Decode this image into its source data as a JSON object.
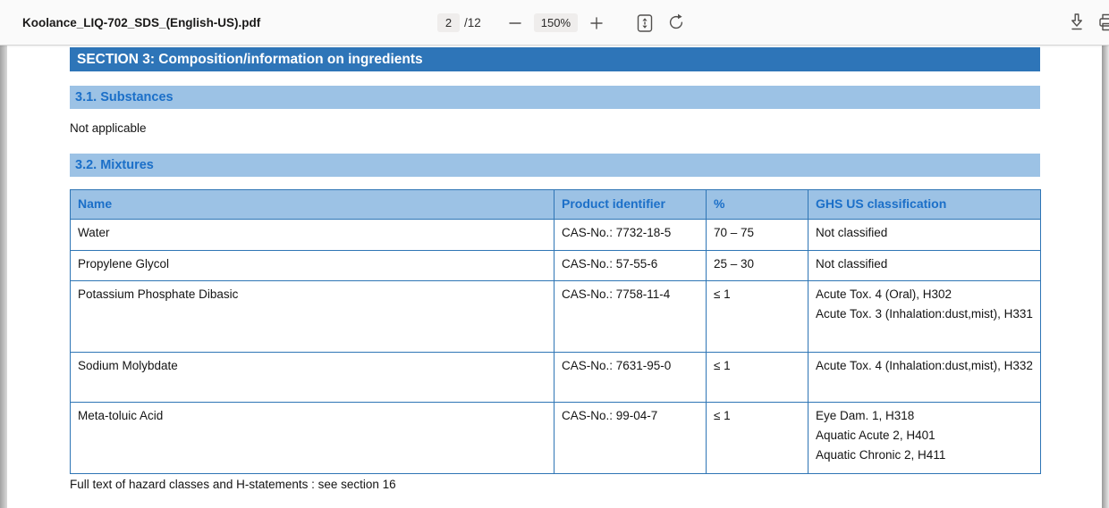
{
  "toolbar": {
    "filename": "Koolance_LIQ-702_SDS_(English-US).pdf",
    "page_current": "2",
    "page_suffix": "/12",
    "zoom_level": "150%",
    "icons": {
      "zoom_out": "minus-icon",
      "zoom_in": "plus-icon",
      "fit": "fit-to-page-icon",
      "rotate": "rotate-icon",
      "download": "download-icon",
      "print": "printer-icon"
    }
  },
  "document": {
    "section_header": "SECTION 3: Composition/information on ingredients",
    "subsection_1": "3.1. Substances",
    "not_applicable": "Not applicable",
    "subsection_2": "3.2. Mixtures",
    "table": {
      "headers": [
        "Name",
        "Product identifier",
        "%",
        "GHS US classification"
      ],
      "rows": [
        {
          "name": "Water",
          "cas": "CAS-No.: 7732-18-5",
          "percent": "70 – 75",
          "ghs": [
            "Not classified"
          ]
        },
        {
          "name": "Propylene Glycol",
          "cas": "CAS-No.: 57-55-6",
          "percent": "25 – 30",
          "ghs": [
            "Not classified"
          ]
        },
        {
          "name": "Potassium Phosphate Dibasic",
          "cas": "CAS-No.: 7758-11-4",
          "percent": "≤ 1",
          "ghs": [
            "Acute Tox. 4 (Oral), H302",
            "Acute Tox. 3 (Inhalation:dust,mist), H331"
          ]
        },
        {
          "name": "Sodium Molybdate",
          "cas": "CAS-No.: 7631-95-0",
          "percent": "≤ 1",
          "ghs": [
            "Acute Tox. 4 (Inhalation:dust,mist), H332"
          ]
        },
        {
          "name": "Meta-toluic Acid",
          "cas": "CAS-No.: 99-04-7",
          "percent": "≤ 1",
          "ghs": [
            "Eye Dam. 1, H318",
            "Aquatic Acute 2, H401",
            "Aquatic Chronic 2, H411"
          ]
        }
      ]
    },
    "footer_note": "Full text of hazard classes and H-statements : see section 16"
  },
  "colors": {
    "section_header_bg": "#2E75B8",
    "subsection_bg": "#9CC2E5",
    "heading_text_blue": "#1B6FC8",
    "table_border_blue": "#2E75B5"
  }
}
